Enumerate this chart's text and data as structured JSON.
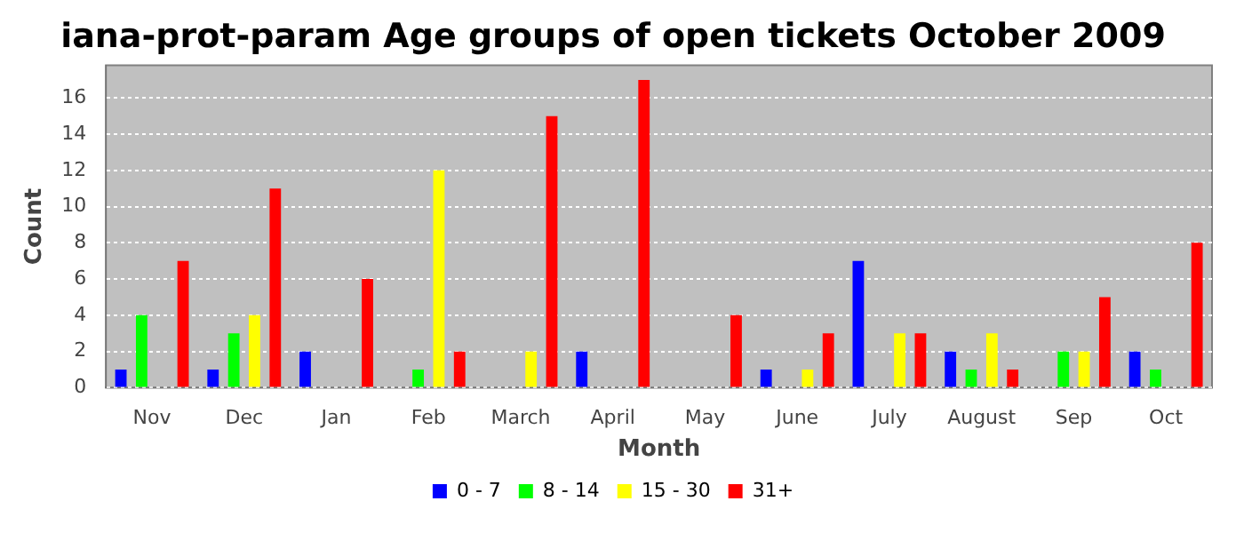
{
  "chart_data": {
    "type": "bar",
    "title": "iana-prot-param Age groups of open tickets October 2009",
    "xlabel": "Month",
    "ylabel": "Count",
    "categories": [
      "Nov",
      "Dec",
      "Jan",
      "Feb",
      "March",
      "April",
      "May",
      "June",
      "July",
      "August",
      "Sep",
      "Oct"
    ],
    "series": [
      {
        "name": "0 - 7",
        "color": "#0000ff",
        "values": [
          1,
          1,
          2,
          0,
          0,
          2,
          0,
          1,
          7,
          2,
          0,
          2
        ]
      },
      {
        "name": "8 - 14",
        "color": "#00ff00",
        "values": [
          4,
          3,
          0,
          1,
          0,
          0,
          0,
          0,
          0,
          1,
          2,
          1
        ]
      },
      {
        "name": "15 - 30",
        "color": "#ffff00",
        "values": [
          0,
          4,
          0,
          12,
          2,
          0,
          0,
          1,
          3,
          3,
          2,
          0
        ]
      },
      {
        "name": "31+",
        "color": "#ff0000",
        "values": [
          7,
          11,
          6,
          2,
          15,
          17,
          4,
          3,
          3,
          1,
          5,
          8
        ]
      }
    ],
    "ylim": [
      0,
      17.8
    ],
    "yticks": [
      0,
      2,
      4,
      6,
      8,
      10,
      12,
      14,
      16
    ],
    "grid": "y",
    "legend": "bottom"
  }
}
